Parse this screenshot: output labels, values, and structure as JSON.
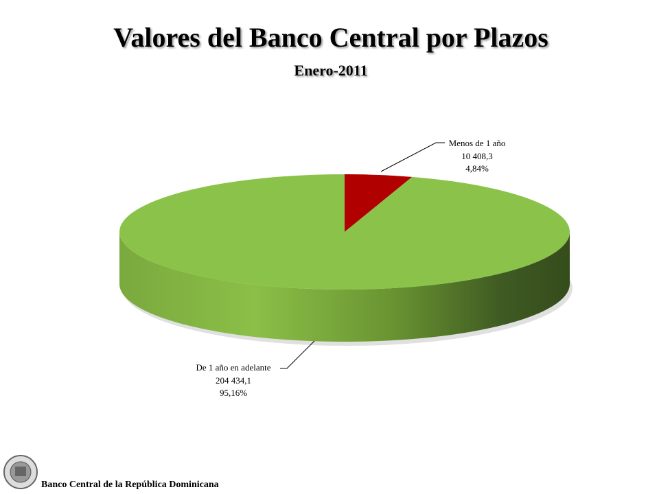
{
  "chart_data": {
    "type": "pie3d",
    "title": "Valores del Banco Central por Plazos",
    "subtitle": "Enero-2011",
    "categories": [
      "Menos de 1 año",
      "De 1 año en adelante"
    ],
    "values": [
      10408.3,
      204434.1
    ],
    "value_labels": [
      "10 408,3",
      "204 434,1"
    ],
    "percents": [
      4.84,
      95.16
    ],
    "percent_labels": [
      "4,84%",
      "95,16%"
    ],
    "colors": [
      "#b00000",
      "#8bc34a"
    ],
    "footer": "Banco Central de la República Dominicana"
  }
}
